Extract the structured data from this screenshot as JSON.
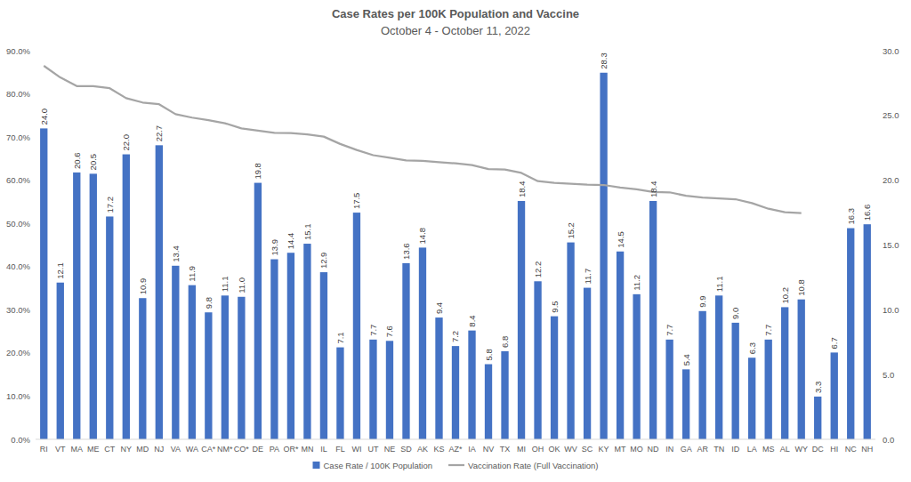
{
  "chart_data": {
    "type": "bar",
    "title": "Case Rates per 100K Population and Vaccine",
    "subtitle": "October 4 - October 11, 2022",
    "categories": [
      "RI",
      "VT",
      "MA",
      "ME",
      "CT",
      "NY",
      "MD",
      "NJ",
      "VA",
      "WA",
      "CA*",
      "NM*",
      "CO*",
      "DE",
      "PA",
      "OR*",
      "MN",
      "IL",
      "FL",
      "WI",
      "UT",
      "NE",
      "SD",
      "AK",
      "KS",
      "AZ*",
      "IA",
      "NV",
      "TX",
      "MI",
      "OH",
      "OK",
      "WV",
      "SC",
      "KY",
      "MT",
      "MO",
      "ND",
      "IN",
      "GA",
      "AR",
      "TN",
      "ID",
      "LA",
      "MS",
      "AL",
      "WY",
      "DC",
      "HI",
      "NC",
      "NH"
    ],
    "series": [
      {
        "name": "Case Rate / 100K Population",
        "type": "bar",
        "axis": "y2",
        "color": "#4472c4",
        "values": [
          24.0,
          12.1,
          20.6,
          20.5,
          17.2,
          22.0,
          10.9,
          22.7,
          13.4,
          11.9,
          9.8,
          11.1,
          11.0,
          19.8,
          13.9,
          14.4,
          15.1,
          12.9,
          7.1,
          17.5,
          7.7,
          7.6,
          13.6,
          14.8,
          9.4,
          7.2,
          8.4,
          5.8,
          6.8,
          18.4,
          12.2,
          9.5,
          15.2,
          11.7,
          28.3,
          14.5,
          11.2,
          18.4,
          7.7,
          5.4,
          9.9,
          11.1,
          9.0,
          6.3,
          7.7,
          10.2,
          10.8,
          3.3,
          6.7,
          16.3,
          16.6
        ],
        "value_labels": [
          "24.0",
          "12.1",
          "20.6",
          "20.5",
          "17.2",
          "22.0",
          "10.9",
          "22.7",
          "13.4",
          "11.9",
          "9.8",
          "11.1",
          "11.0",
          "19.8",
          "13.9",
          "14.4",
          "15.1",
          "12.9",
          "7.1",
          "17.5",
          "7.7",
          "7.6",
          "13.6",
          "14.8",
          "9.4",
          "7.2",
          "8.4",
          "5.8",
          "6.8",
          "18.4",
          "12.2",
          "9.5",
          "15.2",
          "11.7",
          "28.3",
          "14.5",
          "11.2",
          "18.4",
          "7.7",
          "5.4",
          "9.9",
          "11.1",
          "9.0",
          "6.3",
          "7.7",
          "10.2",
          "10.8",
          "3.3",
          "6.7",
          "16.3",
          "16.6"
        ]
      },
      {
        "name": "Vaccination Rate (Full Vaccination)",
        "type": "line",
        "axis": "y",
        "color": "#a5a5a5",
        "values": [
          86.5,
          83.8,
          81.8,
          81.8,
          81.3,
          79.0,
          78.0,
          77.6,
          75.3,
          74.5,
          73.9,
          73.2,
          72.0,
          71.5,
          71.0,
          70.9,
          70.6,
          70.1,
          68.4,
          67.0,
          65.8,
          65.2,
          64.6,
          64.5,
          64.2,
          63.9,
          63.5,
          62.6,
          62.5,
          61.7,
          59.8,
          59.4,
          59.2,
          59.0,
          58.9,
          58.3,
          57.9,
          57.3,
          57.2,
          56.4,
          56.0,
          55.8,
          55.6,
          54.7,
          53.4,
          52.6,
          52.4,
          null,
          null,
          null,
          null
        ]
      }
    ],
    "ylim": [
      0,
      90
    ],
    "yticks": [
      {
        "value": 0,
        "label": "0.0%"
      },
      {
        "value": 10,
        "label": "10.0%"
      },
      {
        "value": 20,
        "label": "20.0%"
      },
      {
        "value": 30,
        "label": "30.0%"
      },
      {
        "value": 40,
        "label": "40.0%"
      },
      {
        "value": 50,
        "label": "50.0%"
      },
      {
        "value": 60,
        "label": "60.0%"
      },
      {
        "value": 70,
        "label": "70.0%"
      },
      {
        "value": 80,
        "label": "80.0%"
      },
      {
        "value": 90,
        "label": "90.0%"
      }
    ],
    "y2lim": [
      0,
      30
    ],
    "y2ticks": [
      {
        "value": 0,
        "label": "0.0"
      },
      {
        "value": 5,
        "label": "5.0"
      },
      {
        "value": 10,
        "label": "10.0"
      },
      {
        "value": 15,
        "label": "15.0"
      },
      {
        "value": 20,
        "label": "20.0"
      },
      {
        "value": 25,
        "label": "25.0"
      },
      {
        "value": 30,
        "label": "30.0"
      }
    ],
    "grid": false,
    "legend": "bottom",
    "data_labels": true
  }
}
